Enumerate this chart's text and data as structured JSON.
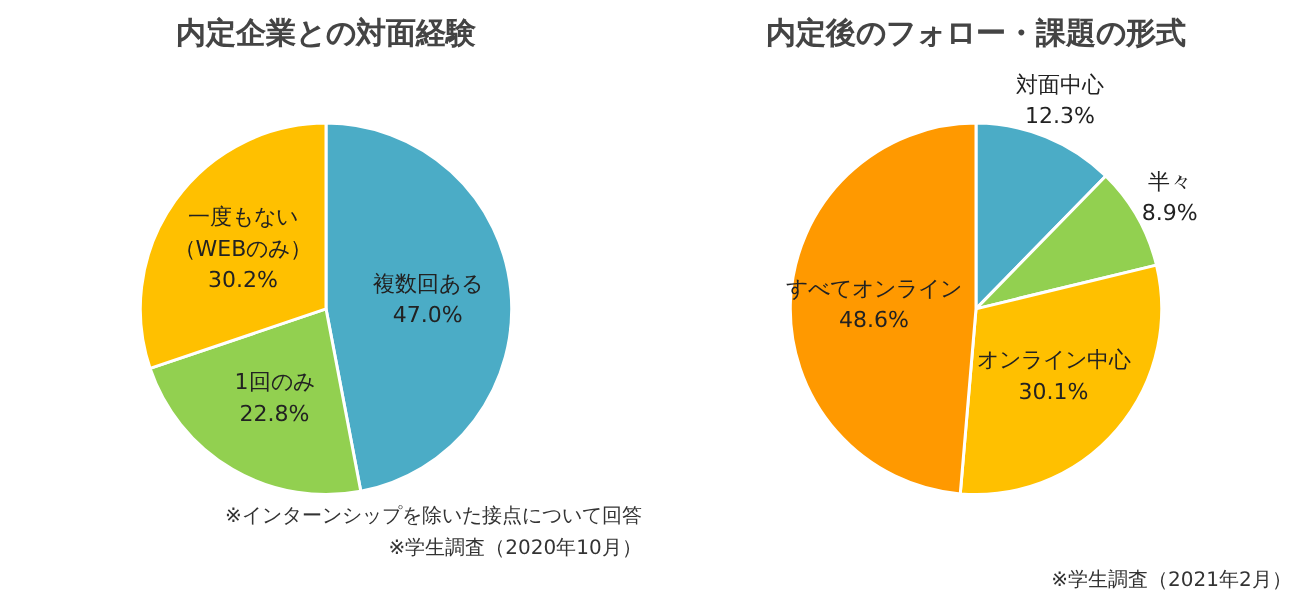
{
  "chart_data": [
    {
      "type": "pie",
      "title": "内定企業との対面経験",
      "categories": [
        "複数回ある",
        "1回のみ",
        "一度もない（WEBのみ）"
      ],
      "values": [
        47.0,
        22.8,
        30.2
      ],
      "value_labels": [
        "47.0%",
        "22.8%",
        "30.2%"
      ],
      "colors": [
        "#4bacc6",
        "#92d050",
        "#ffc000"
      ],
      "annotations": [
        "※インターンシップを除いた接点について回答",
        "※学生調査（2020年10月）"
      ]
    },
    {
      "type": "pie",
      "title": "内定後のフォロー・課題の形式",
      "categories": [
        "対面中心",
        "半々",
        "オンライン中心",
        "すべてオンライン"
      ],
      "values": [
        12.3,
        8.9,
        30.1,
        48.6
      ],
      "value_labels": [
        "12.3%",
        "8.9%",
        "30.1%",
        "48.6%"
      ],
      "colors": [
        "#4bacc6",
        "#92d050",
        "#ffc000",
        "#ff9900"
      ],
      "annotations": [
        "※学生調査（2021年2月）"
      ]
    }
  ]
}
